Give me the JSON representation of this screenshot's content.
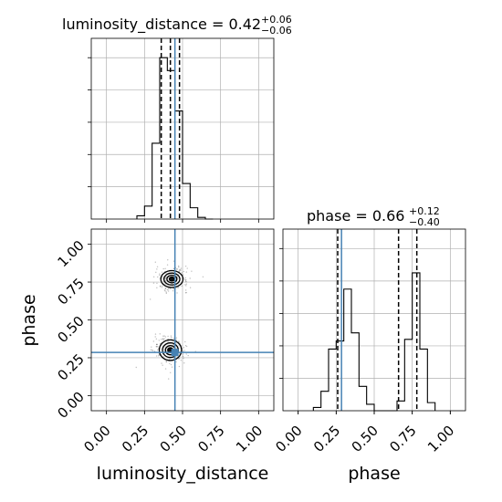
{
  "chart_data": {
    "type": "corner",
    "parameters": [
      "luminosity_distance",
      "phase"
    ],
    "truth": {
      "luminosity_distance": 0.45,
      "phase": 0.285
    },
    "truth_color": "#4682b4",
    "histograms": [
      {
        "parameter": "luminosity_distance",
        "title": "luminosity_distance = 0.42",
        "title_plus": "+0.06",
        "title_minus": "−0.06",
        "quantiles": [
          0.36,
          0.42,
          0.48
        ],
        "bin_edges": [
          0.2,
          0.25,
          0.3,
          0.35,
          0.4,
          0.45,
          0.5,
          0.55,
          0.6,
          0.65,
          0.7
        ],
        "counts": [
          0.02,
          0.08,
          0.47,
          1.0,
          0.92,
          0.67,
          0.22,
          0.07,
          0.01,
          0.0
        ],
        "xlim": [
          -0.1,
          1.1
        ],
        "ylim": [
          0,
          1.12
        ]
      },
      {
        "parameter": "phase",
        "title": "phase = 0.66",
        "title_plus": "+0.12",
        "title_minus": "−0.40",
        "quantiles": [
          0.26,
          0.66,
          0.78
        ],
        "bin_edges": [
          0.1,
          0.15,
          0.2,
          0.25,
          0.3,
          0.35,
          0.4,
          0.45,
          0.5,
          0.55,
          0.6,
          0.65,
          0.7,
          0.75,
          0.8,
          0.85,
          0.9
        ],
        "counts": [
          0.02,
          0.12,
          0.38,
          0.43,
          0.75,
          0.48,
          0.15,
          0.04,
          0.0,
          0.0,
          0.0,
          0.06,
          0.44,
          0.85,
          0.38,
          0.05
        ],
        "xlim": [
          -0.1,
          1.1
        ],
        "ylim": [
          0,
          1.12
        ]
      }
    ],
    "joint": {
      "x": "luminosity_distance",
      "y": "phase",
      "modes": [
        {
          "center_x": 0.43,
          "center_y": 0.77,
          "sigma_x": 0.07,
          "sigma_y": 0.045
        },
        {
          "center_x": 0.42,
          "center_y": 0.3,
          "sigma_x": 0.07,
          "sigma_y": 0.055
        }
      ],
      "xlim": [
        -0.1,
        1.1
      ],
      "ylim": [
        -0.1,
        1.1
      ]
    },
    "ticks": {
      "values": [
        0.0,
        0.25,
        0.5,
        0.75,
        1.0
      ],
      "labels": [
        "0.00",
        "0.25",
        "0.50",
        "0.75",
        "1.00"
      ]
    },
    "xlabels": [
      "luminosity_distance",
      "phase"
    ],
    "ylabel": "phase",
    "grid": true
  }
}
